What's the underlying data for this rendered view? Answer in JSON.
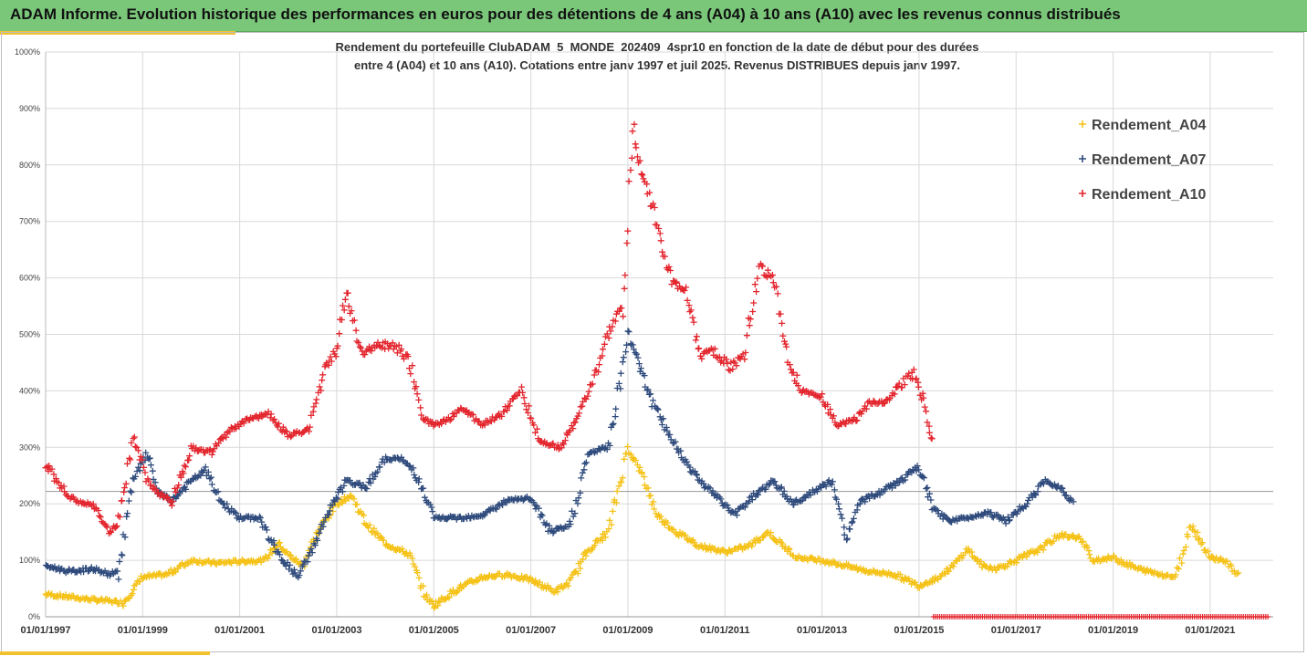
{
  "header": {
    "title": "ADAM Informe. Evolution historique des performances en euros pour des détentions de 4 ans (A04) à 10 ans (A10) avec les revenus connus distribués"
  },
  "chart_data": {
    "type": "scatter",
    "title_line1": "Rendement du portefeuille ClubADAM_5_MONDE_202409_4spr10  en fonction de la date de début pour des durées",
    "title_line2": "entre 4 (A04) et 10 ans (A10). Cotations entre janv 1997 et juil 2025. Revenus DISTRIBUES depuis janv 1997.",
    "xlabel": "",
    "ylabel": "",
    "ylim": [
      0,
      1000
    ],
    "y_ticks": [
      "0%",
      "100%",
      "200%",
      "300%",
      "400%",
      "500%",
      "600%",
      "700%",
      "800%",
      "900%",
      "1000%"
    ],
    "x_ticks": [
      "01/01/1997",
      "01/01/1999",
      "01/01/2001",
      "01/01/2003",
      "01/01/2005",
      "01/01/2007",
      "01/01/2009",
      "01/01/2011",
      "01/01/2013",
      "01/01/2015",
      "01/01/2017",
      "01/01/2019",
      "01/01/2021"
    ],
    "xlim": [
      1997.0,
      2022.3
    ],
    "reference_line_pct": 222,
    "grid": true,
    "legend_position": "top-right",
    "marker": "+",
    "series": [
      {
        "name": "Rendement_A04",
        "color": "#f5c218",
        "x": [
          1997.0,
          1997.5,
          1998.0,
          1998.3,
          1998.6,
          1999.0,
          1999.5,
          2000.0,
          2000.5,
          2001.0,
          2001.5,
          2001.8,
          2002.0,
          2002.3,
          2002.6,
          2003.0,
          2003.3,
          2003.6,
          2004.0,
          2004.5,
          2004.8,
          2005.0,
          2005.5,
          2006.0,
          2006.5,
          2007.0,
          2007.5,
          2007.8,
          2008.2,
          2008.6,
          2009.0,
          2009.3,
          2009.6,
          2010.0,
          2010.5,
          2011.0,
          2011.5,
          2011.9,
          2012.2,
          2012.5,
          2013.0,
          2013.5,
          2014.0,
          2014.5,
          2015.0,
          2015.4,
          2015.7,
          2016.0,
          2016.3,
          2016.6,
          2017.0,
          2017.5,
          2017.9,
          2018.3,
          2018.6,
          2019.0,
          2019.5,
          2020.0,
          2020.3,
          2020.6,
          2021.0,
          2021.3,
          2021.6
        ],
        "y": [
          40,
          35,
          30,
          28,
          25,
          70,
          75,
          100,
          95,
          98,
          100,
          130,
          110,
          90,
          150,
          200,
          215,
          165,
          130,
          110,
          40,
          20,
          50,
          70,
          75,
          65,
          45,
          60,
          120,
          150,
          300,
          250,
          180,
          150,
          125,
          115,
          125,
          150,
          125,
          105,
          100,
          90,
          80,
          75,
          55,
          70,
          90,
          120,
          90,
          85,
          100,
          120,
          145,
          140,
          100,
          105,
          85,
          75,
          70,
          165,
          105,
          100,
          70
        ]
      },
      {
        "name": "Rendement_A07",
        "color": "#2f4b7c",
        "x": [
          1997.0,
          1997.5,
          1998.0,
          1998.3,
          1998.5,
          1998.8,
          1999.1,
          1999.3,
          1999.6,
          2000.0,
          2000.3,
          2000.6,
          2001.0,
          2001.4,
          2001.8,
          2002.2,
          2002.5,
          2002.8,
          2003.2,
          2003.6,
          2004.0,
          2004.3,
          2004.6,
          2005.0,
          2005.5,
          2006.0,
          2006.5,
          2007.0,
          2007.4,
          2007.8,
          2008.2,
          2008.6,
          2009.0,
          2009.2,
          2009.5,
          2010.0,
          2010.4,
          2010.8,
          2011.2,
          2011.6,
          2012.0,
          2012.4,
          2012.8,
          2013.2,
          2013.5,
          2013.8,
          2014.2,
          2014.6,
          2015.0,
          2015.3,
          2015.6,
          2016.0,
          2016.4,
          2016.8,
          2017.2,
          2017.6,
          2017.9,
          2018.2
        ],
        "y": [
          90,
          80,
          85,
          75,
          80,
          240,
          290,
          220,
          205,
          240,
          260,
          205,
          175,
          175,
          110,
          70,
          120,
          180,
          240,
          230,
          280,
          280,
          260,
          175,
          175,
          180,
          205,
          210,
          150,
          160,
          290,
          300,
          500,
          460,
          380,
          300,
          250,
          215,
          180,
          215,
          240,
          200,
          220,
          240,
          140,
          205,
          220,
          240,
          265,
          190,
          170,
          175,
          185,
          170,
          200,
          240,
          230,
          200
        ]
      },
      {
        "name": "Rendement_A10",
        "color": "#e3262e",
        "x": [
          1997.0,
          1997.5,
          1998.0,
          1998.3,
          1998.5,
          1998.8,
          1999.1,
          1999.3,
          1999.6,
          2000.0,
          2000.4,
          2000.8,
          2001.2,
          2001.6,
          2002.0,
          2002.4,
          2002.8,
          2003.0,
          2003.2,
          2003.5,
          2003.9,
          2004.2,
          2004.5,
          2004.8,
          2005.0,
          2005.3,
          2005.6,
          2006.0,
          2006.4,
          2006.8,
          2007.2,
          2007.6,
          2008.0,
          2008.3,
          2008.6,
          2008.9,
          2009.1,
          2009.3,
          2009.6,
          2009.9,
          2010.2,
          2010.5,
          2010.8,
          2011.1,
          2011.4,
          2011.7,
          2012.0,
          2012.3,
          2012.6,
          2013.0,
          2013.3,
          2013.7,
          2014.0,
          2014.3,
          2014.6,
          2014.9,
          2015.1,
          2015.3
        ],
        "y": [
          270,
          210,
          195,
          150,
          165,
          320,
          240,
          220,
          205,
          300,
          290,
          330,
          350,
          360,
          320,
          330,
          450,
          470,
          580,
          470,
          480,
          480,
          450,
          350,
          340,
          350,
          370,
          340,
          360,
          400,
          310,
          300,
          360,
          420,
          500,
          550,
          870,
          780,
          700,
          590,
          580,
          460,
          470,
          440,
          470,
          620,
          600,
          450,
          400,
          390,
          340,
          350,
          380,
          380,
          410,
          430,
          380,
          300
        ]
      }
    ]
  }
}
